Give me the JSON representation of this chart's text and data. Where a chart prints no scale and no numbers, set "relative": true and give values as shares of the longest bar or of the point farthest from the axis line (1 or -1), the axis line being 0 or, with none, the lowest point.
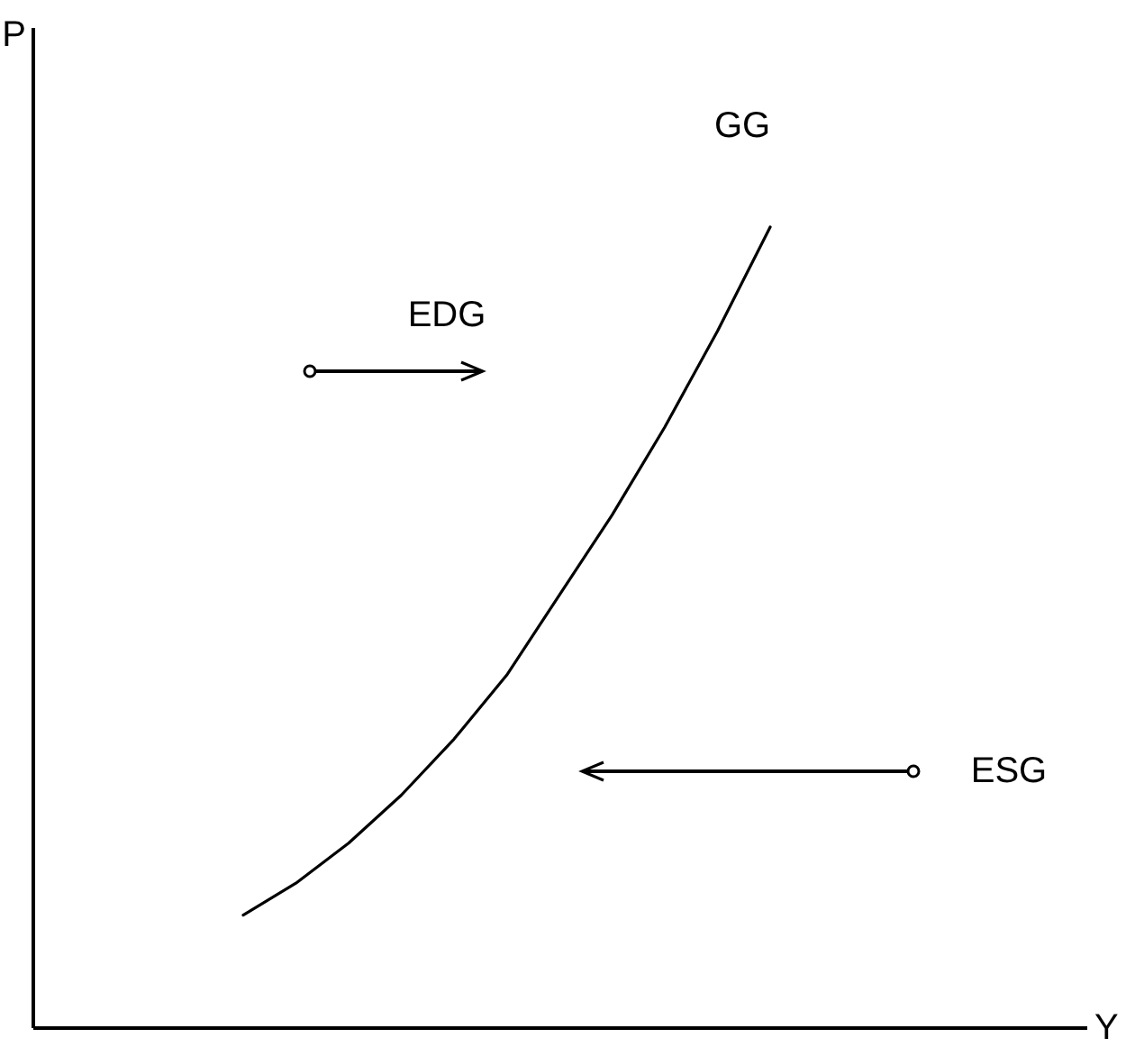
{
  "chart_data": {
    "type": "line",
    "relative": true,
    "xlabel": "Y",
    "ylabel": "P",
    "categories": [
      null,
      null,
      null,
      null,
      null,
      null,
      null,
      null,
      null,
      null,
      null,
      null,
      null,
      null,
      null,
      null,
      null,
      null,
      null,
      null,
      null
    ],
    "series": [
      {
        "color": "#000000",
        "values": [
          null,
          null,
          null,
          null,
          0.14,
          0.18,
          0.23,
          0.29,
          0.36,
          0.44,
          0.54,
          0.64,
          0.75,
          0.87,
          1,
          null,
          null,
          null,
          null,
          null,
          null
        ]
      }
    ],
    "annotations": [
      "GG",
      "EDG",
      "ESG"
    ]
  }
}
